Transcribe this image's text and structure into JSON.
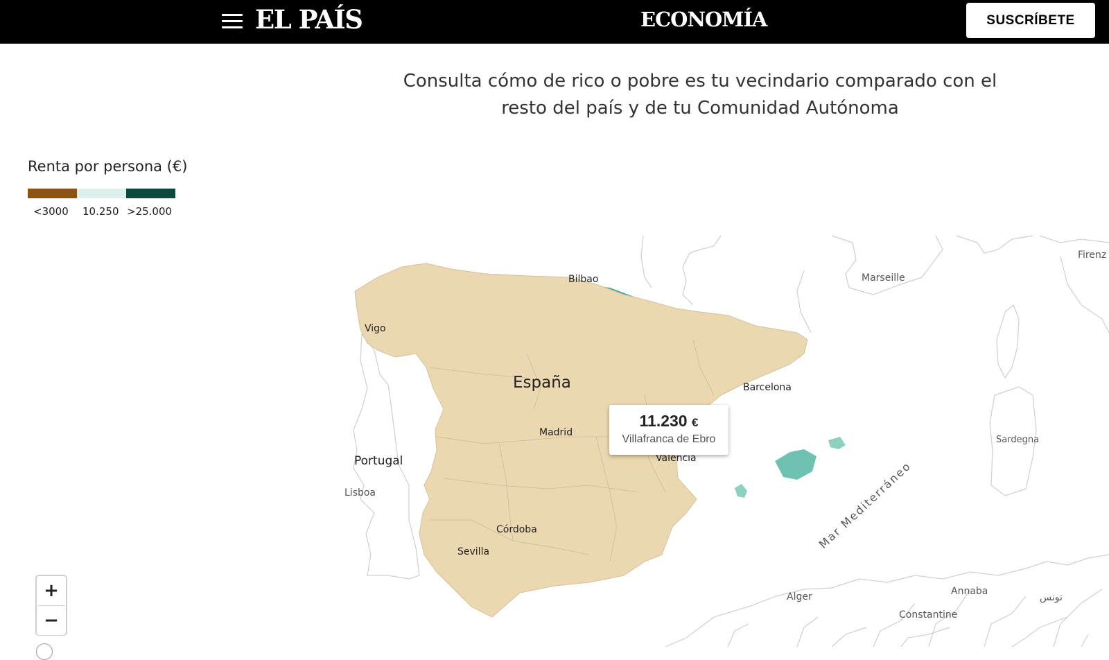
{
  "header": {
    "menu_icon": "hamburger-menu-icon",
    "brand": "EL PAÍS",
    "section": "ECONOMÍA",
    "subscribe_label": "SUSCRÍBETE"
  },
  "intro": {
    "line1": "Consulta cómo de rico o pobre es tu vecindario comparado con el",
    "line2": "resto del país y de tu Comunidad Autónoma"
  },
  "legend": {
    "title": "Renta por persona (€)",
    "swatches": [
      "#8c5313",
      "#dcf0ec",
      "#0b4a3c"
    ],
    "labels": [
      "<3000",
      "10.250",
      ">25.000"
    ]
  },
  "map": {
    "country_label": "España",
    "neighbor_label": "Portugal",
    "cities": {
      "bilbao": "Bilbao",
      "vigo": "Vigo",
      "madrid": "Madrid",
      "barcelona": "Barcelona",
      "valencia": "Valencia",
      "lisboa": "Lisboa",
      "cordoba": "Córdoba",
      "sevilla": "Sevilla",
      "marseille": "Marseille",
      "firenze": "Firenz",
      "sardegna": "Sardegna",
      "alger": "Alger",
      "annaba": "Annaba",
      "constantine": "Constantine",
      "tunis": "تونس"
    },
    "sea_label": "Mar Mediterráneo",
    "colors": {
      "north_teal": "#7fcbbb",
      "dark_teal": "#1d8a78",
      "south_beige": "#ecd6ae",
      "brown": "#8c5313"
    }
  },
  "tooltip": {
    "value": "11.230",
    "unit": "€",
    "place": "Villafranca de Ebro"
  },
  "zoom": {
    "in_label": "+",
    "out_label": "−"
  }
}
